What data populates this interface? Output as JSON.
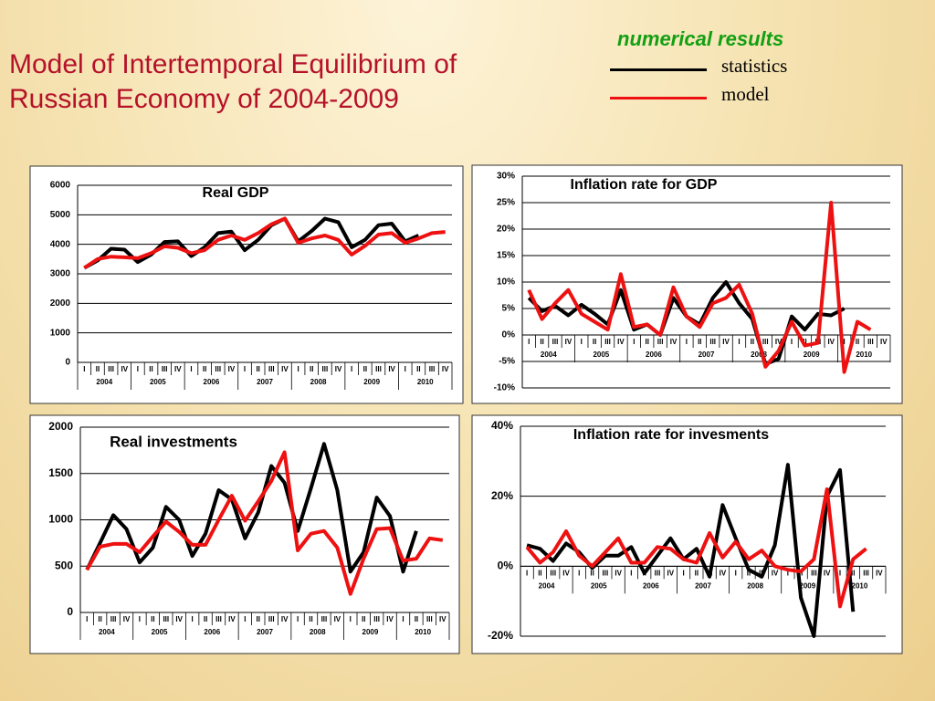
{
  "slide": {
    "title": "Model of Intertemporal Equilibrium of Russian Economy of 2004-2009",
    "legend_title": "numerical results"
  },
  "chart_data": [
    {
      "type": "line",
      "title": "Real GDP",
      "categories": [
        "I",
        "II",
        "III",
        "IV",
        "I",
        "II",
        "III",
        "IV",
        "I",
        "II",
        "III",
        "IV",
        "I",
        "II",
        "III",
        "IV",
        "I",
        "II",
        "III",
        "IV",
        "I",
        "II",
        "III",
        "IV",
        "I",
        "II",
        "III",
        "IV"
      ],
      "year_groups": [
        "2004",
        "2005",
        "2006",
        "2007",
        "2008",
        "2009",
        "2010"
      ],
      "ylim": [
        0,
        6000
      ],
      "yticks": [
        0,
        1000,
        2000,
        3000,
        4000,
        5000,
        6000
      ],
      "grid": true,
      "series": [
        {
          "name": "statistics",
          "color": "#000000",
          "values": [
            3200,
            3450,
            3850,
            3820,
            3400,
            3650,
            4080,
            4100,
            3600,
            3900,
            4380,
            4430,
            3800,
            4150,
            4650,
            4870,
            4100,
            4450,
            4870,
            4750,
            3900,
            4150,
            4650,
            4700,
            4100,
            4300,
            null,
            null
          ]
        },
        {
          "name": "model",
          "color": "#ee1111",
          "values": [
            3200,
            3500,
            3580,
            3560,
            3530,
            3700,
            3930,
            3880,
            3700,
            3800,
            4150,
            4300,
            4150,
            4380,
            4680,
            4870,
            4050,
            4200,
            4300,
            4150,
            3650,
            3950,
            4330,
            4380,
            4050,
            4200,
            4380,
            4420
          ]
        }
      ]
    },
    {
      "type": "line",
      "title": "Inflation rate for GDP",
      "categories": [
        "I",
        "II",
        "III",
        "IV",
        "I",
        "II",
        "III",
        "IV",
        "I",
        "II",
        "III",
        "IV",
        "I",
        "II",
        "III",
        "IV",
        "I",
        "II",
        "III",
        "IV",
        "I",
        "II",
        "III",
        "IV",
        "I",
        "II",
        "III",
        "IV"
      ],
      "year_groups": [
        "2004",
        "2005",
        "2006",
        "2007",
        "2008",
        "2009",
        "2010"
      ],
      "ylim": [
        -10,
        30
      ],
      "yticks": [
        {
          "value": -10,
          "label": "-10%"
        },
        {
          "value": -5,
          "label": "-5%"
        },
        {
          "value": 0,
          "label": "0%"
        },
        {
          "value": 5,
          "label": "5%"
        },
        {
          "value": 10,
          "label": "10%"
        },
        {
          "value": 15,
          "label": "15%"
        },
        {
          "value": 20,
          "label": "20%"
        },
        {
          "value": 25,
          "label": "25%"
        },
        {
          "value": 30,
          "label": "30%"
        }
      ],
      "grid": true,
      "series": [
        {
          "name": "statistics",
          "color": "#000000",
          "values": [
            7,
            4.5,
            5.5,
            3.7,
            5.7,
            4,
            2,
            8.5,
            1,
            2,
            0,
            7,
            3.5,
            2,
            7,
            10,
            6,
            3,
            -5.5,
            -4.5,
            3.5,
            1,
            4,
            3.7,
            5,
            null,
            null,
            null
          ]
        },
        {
          "name": "model",
          "color": "#ee1111",
          "values": [
            8.5,
            3,
            6,
            8.5,
            4,
            2.5,
            1,
            11.5,
            1.5,
            2,
            0,
            9,
            3.5,
            1.5,
            6,
            7,
            9.5,
            4,
            -6,
            -3,
            2.5,
            -2,
            -1.5,
            25,
            -7,
            2.5,
            1,
            null
          ]
        }
      ]
    },
    {
      "type": "line",
      "title": "Real investments",
      "categories": [
        "I",
        "II",
        "III",
        "IV",
        "I",
        "II",
        "III",
        "IV",
        "I",
        "II",
        "III",
        "IV",
        "I",
        "II",
        "III",
        "IV",
        "I",
        "II",
        "III",
        "IV",
        "I",
        "II",
        "III",
        "IV",
        "I",
        "II",
        "III",
        "IV"
      ],
      "year_groups": [
        "2004",
        "2005",
        "2006",
        "2007",
        "2008",
        "2009",
        "2010"
      ],
      "ylim": [
        0,
        2000
      ],
      "yticks": [
        0,
        500,
        1000,
        1500,
        2000
      ],
      "grid": true,
      "series": [
        {
          "name": "statistics",
          "color": "#000000",
          "values": [
            460,
            750,
            1050,
            900,
            540,
            700,
            1140,
            1000,
            610,
            850,
            1320,
            1220,
            800,
            1080,
            1580,
            1400,
            880,
            1340,
            1820,
            1320,
            440,
            650,
            1240,
            1040,
            440,
            880,
            null,
            null
          ]
        },
        {
          "name": "model",
          "color": "#ee1111",
          "values": [
            460,
            710,
            740,
            740,
            650,
            820,
            980,
            870,
            730,
            730,
            1000,
            1260,
            990,
            1200,
            1420,
            1730,
            670,
            850,
            880,
            700,
            200,
            580,
            900,
            910,
            560,
            580,
            800,
            780
          ]
        }
      ]
    },
    {
      "type": "line",
      "title": "Inflation rate for invesments",
      "categories": [
        "I",
        "II",
        "III",
        "IV",
        "I",
        "II",
        "III",
        "IV",
        "I",
        "II",
        "III",
        "IV",
        "I",
        "II",
        "III",
        "IV",
        "I",
        "II",
        "III",
        "IV",
        "I",
        "II",
        "III",
        "IV",
        "I",
        "II",
        "III",
        "IV"
      ],
      "year_groups": [
        "2004",
        "2005",
        "2006",
        "2007",
        "2008",
        "2009",
        "2010"
      ],
      "ylim": [
        -20,
        40
      ],
      "yticks": [
        {
          "value": -20,
          "label": "-20%"
        },
        {
          "value": 0,
          "label": "0%"
        },
        {
          "value": 20,
          "label": "20%"
        },
        {
          "value": 40,
          "label": "40%"
        }
      ],
      "grid": true,
      "series": [
        {
          "name": "statistics",
          "color": "#000000",
          "values": [
            6,
            5,
            1.5,
            6.5,
            4,
            -0.5,
            3,
            3,
            5.5,
            -2,
            3,
            8,
            2,
            5,
            -3,
            17.5,
            8,
            -1,
            -3,
            6,
            29,
            -9,
            -20,
            20,
            27.5,
            -13,
            null,
            null
          ]
        },
        {
          "name": "model",
          "color": "#ee1111",
          "values": [
            5.5,
            1,
            4,
            10,
            3,
            0,
            4,
            8,
            1,
            1,
            5.5,
            5,
            2,
            1,
            9.5,
            2.5,
            7,
            2,
            4.5,
            0,
            -1,
            -1.5,
            2,
            22,
            -11.5,
            2,
            5,
            null
          ]
        }
      ]
    }
  ]
}
